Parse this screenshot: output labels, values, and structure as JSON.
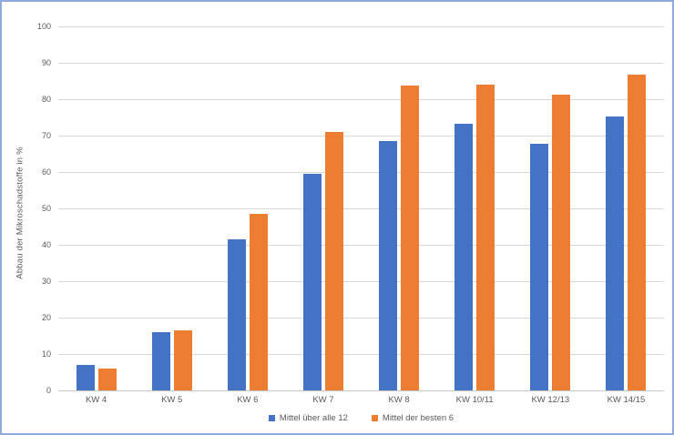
{
  "window": {
    "background": "#FFFFFF",
    "frame_border_color": "#8EA9DB"
  },
  "colors": {
    "gridline": "#D9D9D9",
    "axis_line": "#C6C6C6",
    "text": "#595959",
    "series_blue": "#4472C4",
    "series_orange": "#ED7D31"
  },
  "chart_data": {
    "type": "bar",
    "title": "",
    "xlabel": "",
    "ylabel": "Abbau der Mikroschadstoffe in %",
    "ylim": [
      0,
      100
    ],
    "yticks": [
      0,
      10,
      20,
      30,
      40,
      50,
      60,
      70,
      80,
      90,
      100
    ],
    "grid": true,
    "legend_position": "bottom",
    "categories": [
      "KW 4",
      "KW 5",
      "KW 6",
      "KW 7",
      "KW 8",
      "KW 10/11",
      "KW 12/13",
      "KW 14/15"
    ],
    "series": [
      {
        "name": "Mittel über alle 12",
        "color": "#4472C4",
        "values": [
          7.0,
          15.9,
          41.4,
          59.4,
          68.5,
          73.2,
          67.8,
          75.3
        ]
      },
      {
        "name": "Mittel der besten 6",
        "color": "#ED7D31",
        "values": [
          6.0,
          16.6,
          48.4,
          70.9,
          83.8,
          84.0,
          81.2,
          86.8
        ]
      }
    ]
  }
}
